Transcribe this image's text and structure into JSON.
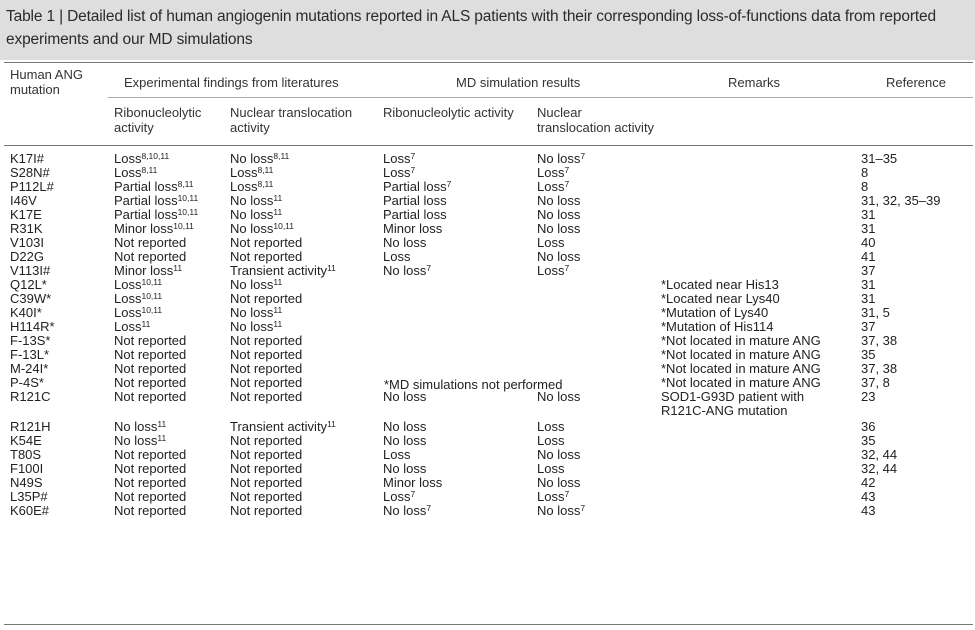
{
  "caption": "Table 1 | Detailed list of human angiogenin mutations reported in ALS patients with their corresponding loss-of-functions data from reported experiments and our MD simulations",
  "header": {
    "mutation_line1": "Human ANG",
    "mutation_line2": "mutation",
    "experimental": "Experimental findings from literatures",
    "md": "MD simulation results",
    "remarks": "Remarks",
    "reference": "Reference",
    "exp_ribo_1": "Ribonucleolytic",
    "exp_ribo_2": "activity",
    "exp_nuc_1": "Nuclear translocation",
    "exp_nuc_2": "activity",
    "md_ribo": "Ribonucleolytic activity",
    "md_nuc_1": "Nuclear",
    "md_nuc_2": "translocation activity"
  },
  "md_not_performed": "*MD simulations not performed",
  "rows": [
    {
      "mutation": "K17I#",
      "exp_ribo": "Loss",
      "exp_ribo_sup": "8,10,11",
      "exp_nuc": "No loss",
      "exp_nuc_sup": "8,11",
      "md_ribo": "Loss",
      "md_ribo_sup": "7",
      "md_nuc": "No loss",
      "md_nuc_sup": "7",
      "remarks": "",
      "reference": "31–35"
    },
    {
      "mutation": "S28N#",
      "exp_ribo": "Loss",
      "exp_ribo_sup": "8,11",
      "exp_nuc": "Loss",
      "exp_nuc_sup": "8,11",
      "md_ribo": "Loss",
      "md_ribo_sup": "7",
      "md_nuc": "Loss",
      "md_nuc_sup": "7",
      "remarks": "",
      "reference": "8"
    },
    {
      "mutation": "P112L#",
      "exp_ribo": "Partial loss",
      "exp_ribo_sup": "8,11",
      "exp_nuc": "Loss",
      "exp_nuc_sup": "8,11",
      "md_ribo": "Partial loss",
      "md_ribo_sup": "7",
      "md_nuc": "Loss",
      "md_nuc_sup": "7",
      "remarks": "",
      "reference": "8"
    },
    {
      "mutation": "I46V",
      "exp_ribo": "Partial loss",
      "exp_ribo_sup": "10,11",
      "exp_nuc": "No loss",
      "exp_nuc_sup": "11",
      "md_ribo": "Partial loss",
      "md_ribo_sup": "",
      "md_nuc": "No loss",
      "md_nuc_sup": "",
      "remarks": "",
      "reference": "31, 32, 35–39"
    },
    {
      "mutation": "K17E",
      "exp_ribo": "Partial loss",
      "exp_ribo_sup": "10,11",
      "exp_nuc": "No loss",
      "exp_nuc_sup": "11",
      "md_ribo": "Partial loss",
      "md_ribo_sup": "",
      "md_nuc": "No loss",
      "md_nuc_sup": "",
      "remarks": "",
      "reference": "31"
    },
    {
      "mutation": "R31K",
      "exp_ribo": "Minor loss",
      "exp_ribo_sup": "10,11",
      "exp_nuc": "No loss",
      "exp_nuc_sup": "10,11",
      "md_ribo": "Minor loss",
      "md_ribo_sup": "",
      "md_nuc": "No loss",
      "md_nuc_sup": "",
      "remarks": "",
      "reference": "31"
    },
    {
      "mutation": "V103I",
      "exp_ribo": "Not reported",
      "exp_ribo_sup": "",
      "exp_nuc": "Not reported",
      "exp_nuc_sup": "",
      "md_ribo": "No loss",
      "md_ribo_sup": "",
      "md_nuc": "Loss",
      "md_nuc_sup": "",
      "remarks": "",
      "reference": "40"
    },
    {
      "mutation": "D22G",
      "exp_ribo": "Not reported",
      "exp_ribo_sup": "",
      "exp_nuc": "Not reported",
      "exp_nuc_sup": "",
      "md_ribo": "Loss",
      "md_ribo_sup": "",
      "md_nuc": "No loss",
      "md_nuc_sup": "",
      "remarks": "",
      "reference": "41"
    },
    {
      "mutation": "V113I#",
      "exp_ribo": "Minor loss",
      "exp_ribo_sup": "11",
      "exp_nuc": "Transient activity",
      "exp_nuc_sup": "11",
      "md_ribo": "No loss",
      "md_ribo_sup": "7",
      "md_nuc": "Loss",
      "md_nuc_sup": "7",
      "remarks": "",
      "reference": "37"
    },
    {
      "mutation": "Q12L*",
      "exp_ribo": "Loss",
      "exp_ribo_sup": "10,11",
      "exp_nuc": "No loss",
      "exp_nuc_sup": "11",
      "md_ribo": "",
      "md_ribo_sup": "",
      "md_nuc": "",
      "md_nuc_sup": "",
      "remarks": "*Located near His13",
      "reference": "31"
    },
    {
      "mutation": "C39W*",
      "exp_ribo": "Loss",
      "exp_ribo_sup": "10,11",
      "exp_nuc": "Not reported",
      "exp_nuc_sup": "",
      "md_ribo": "",
      "md_ribo_sup": "",
      "md_nuc": "",
      "md_nuc_sup": "",
      "remarks": "*Located near Lys40",
      "reference": "31"
    },
    {
      "mutation": "K40I*",
      "exp_ribo": "Loss",
      "exp_ribo_sup": "10,11",
      "exp_nuc": "No loss",
      "exp_nuc_sup": "11",
      "md_ribo": "",
      "md_ribo_sup": "",
      "md_nuc": "",
      "md_nuc_sup": "",
      "remarks": "*Mutation of Lys40",
      "reference": "31, 5"
    },
    {
      "mutation": "H114R*",
      "exp_ribo": "Loss",
      "exp_ribo_sup": "11",
      "exp_nuc": "No loss",
      "exp_nuc_sup": "11",
      "md_ribo": "",
      "md_ribo_sup": "",
      "md_nuc": "",
      "md_nuc_sup": "",
      "remarks": "*Mutation of His114",
      "reference": "37"
    },
    {
      "mutation": "F-13S*",
      "exp_ribo": "Not reported",
      "exp_ribo_sup": "",
      "exp_nuc": "Not reported",
      "exp_nuc_sup": "",
      "md_ribo": "",
      "md_ribo_sup": "",
      "md_nuc": "",
      "md_nuc_sup": "",
      "remarks": "*Not located in mature ANG",
      "reference": "37, 38"
    },
    {
      "mutation": "F-13L*",
      "exp_ribo": "Not reported",
      "exp_ribo_sup": "",
      "exp_nuc": "Not reported",
      "exp_nuc_sup": "",
      "md_ribo": "",
      "md_ribo_sup": "",
      "md_nuc": "",
      "md_nuc_sup": "",
      "remarks": "*Not located in mature ANG",
      "reference": "35"
    },
    {
      "mutation": "M-24I*",
      "exp_ribo": "Not reported",
      "exp_ribo_sup": "",
      "exp_nuc": "Not reported",
      "exp_nuc_sup": "",
      "md_ribo": "",
      "md_ribo_sup": "",
      "md_nuc": "",
      "md_nuc_sup": "",
      "remarks": "*Not located in mature ANG",
      "reference": "37, 38"
    },
    {
      "mutation": "P-4S*",
      "exp_ribo": "Not reported",
      "exp_ribo_sup": "",
      "exp_nuc": "Not reported",
      "exp_nuc_sup": "",
      "md_ribo": "",
      "md_ribo_sup": "",
      "md_nuc": "",
      "md_nuc_sup": "",
      "remarks": "*Not located in mature ANG",
      "reference": "37, 8"
    },
    {
      "mutation": "R121C",
      "exp_ribo": "Not reported",
      "exp_ribo_sup": "",
      "exp_nuc": "Not reported",
      "exp_nuc_sup": "",
      "md_ribo": "No loss",
      "md_ribo_sup": "",
      "md_nuc": "No loss",
      "md_nuc_sup": "",
      "remarks": "SOD1-G93D patient with",
      "remarks2": "R121C-ANG mutation",
      "reference": "23"
    },
    {
      "mutation": "R121H",
      "exp_ribo": "No loss",
      "exp_ribo_sup": "11",
      "exp_nuc": "Transient activity",
      "exp_nuc_sup": "11",
      "md_ribo": "No loss",
      "md_ribo_sup": "",
      "md_nuc": "Loss",
      "md_nuc_sup": "",
      "remarks": "",
      "reference": "36"
    },
    {
      "mutation": "K54E",
      "exp_ribo": "No loss",
      "exp_ribo_sup": "11",
      "exp_nuc": "Not reported",
      "exp_nuc_sup": "",
      "md_ribo": "No loss",
      "md_ribo_sup": "",
      "md_nuc": "Loss",
      "md_nuc_sup": "",
      "remarks": "",
      "reference": "35"
    },
    {
      "mutation": "T80S",
      "exp_ribo": "Not reported",
      "exp_ribo_sup": "",
      "exp_nuc": "Not reported",
      "exp_nuc_sup": "",
      "md_ribo": "Loss",
      "md_ribo_sup": "",
      "md_nuc": "No loss",
      "md_nuc_sup": "",
      "remarks": "",
      "reference": "32, 44"
    },
    {
      "mutation": "F100I",
      "exp_ribo": "Not reported",
      "exp_ribo_sup": "",
      "exp_nuc": "Not reported",
      "exp_nuc_sup": "",
      "md_ribo": "No loss",
      "md_ribo_sup": "",
      "md_nuc": "Loss",
      "md_nuc_sup": "",
      "remarks": "",
      "reference": "32, 44"
    },
    {
      "mutation": "N49S",
      "exp_ribo": "Not reported",
      "exp_ribo_sup": "",
      "exp_nuc": "Not reported",
      "exp_nuc_sup": "",
      "md_ribo": "Minor loss",
      "md_ribo_sup": "",
      "md_nuc": "No loss",
      "md_nuc_sup": "",
      "remarks": "",
      "reference": "42"
    },
    {
      "mutation": "L35P#",
      "exp_ribo": "Not reported",
      "exp_ribo_sup": "",
      "exp_nuc": "Not reported",
      "exp_nuc_sup": "",
      "md_ribo": "Loss",
      "md_ribo_sup": "7",
      "md_nuc": "Loss",
      "md_nuc_sup": "7",
      "remarks": "",
      "reference": "43"
    },
    {
      "mutation": "K60E#",
      "exp_ribo": "Not reported",
      "exp_ribo_sup": "",
      "exp_nuc": "Not reported",
      "exp_nuc_sup": "",
      "md_ribo": "No loss",
      "md_ribo_sup": "7",
      "md_nuc": "No loss",
      "md_nuc_sup": "7",
      "remarks": "",
      "reference": "43"
    }
  ]
}
